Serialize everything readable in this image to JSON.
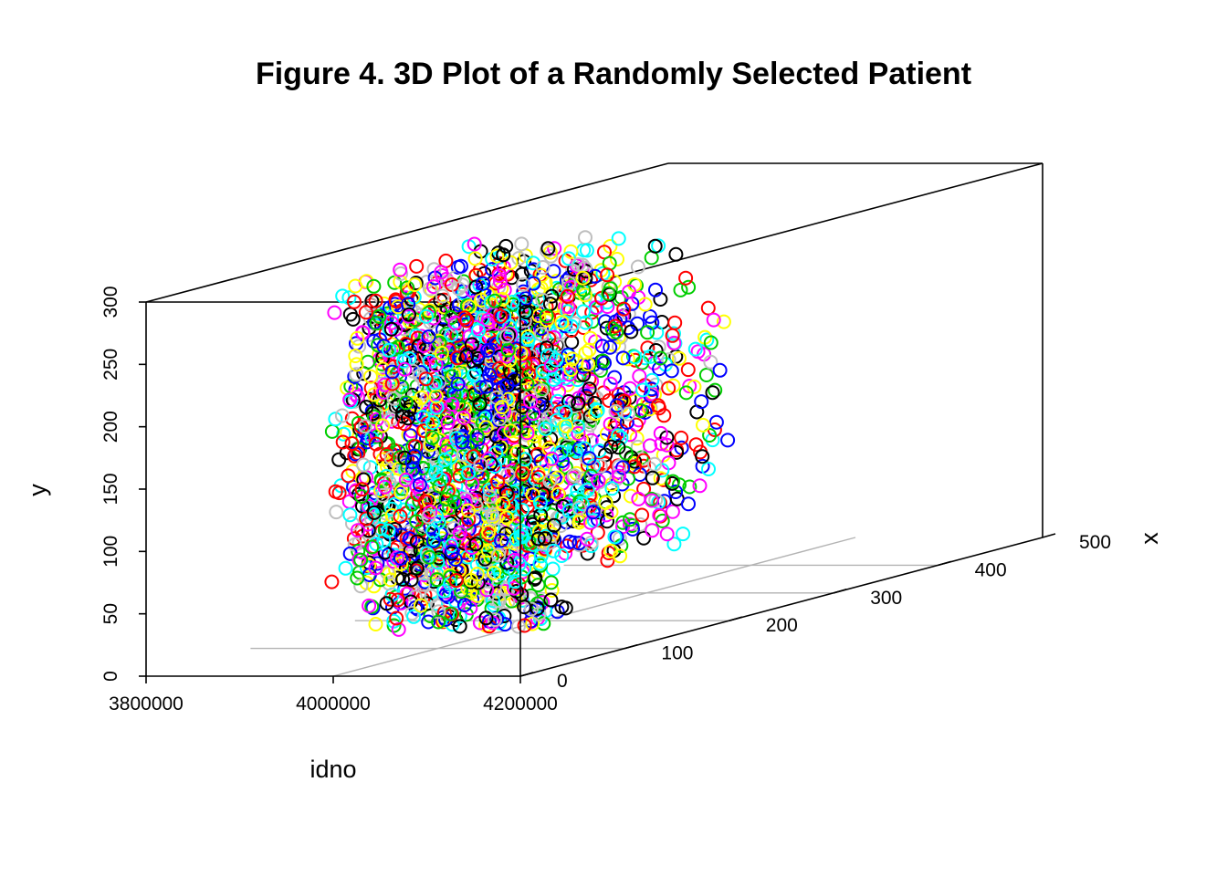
{
  "chart_data": {
    "type": "scatter",
    "projection": "3d",
    "title": "Figure 4. 3D Plot of a Randomly Selected Patient",
    "xlabel": "idno",
    "ylabel": "x",
    "zlabel": "y",
    "xlim": [
      3800000,
      4200000
    ],
    "ylim": [
      0,
      500
    ],
    "zlim": [
      0,
      300
    ],
    "x_ticks": [
      "3800000",
      "4000000",
      "4200000"
    ],
    "y_ticks": [
      "0",
      "100",
      "200",
      "300",
      "400",
      "500"
    ],
    "z_ticks": [
      "0",
      "50",
      "100",
      "150",
      "200",
      "250",
      "300"
    ],
    "marker": "open-circle",
    "point_colors": [
      "#000000",
      "#ff0000",
      "#00cd00",
      "#0000ff",
      "#00ffff",
      "#ff00ff",
      "#ffff00",
      "#bebebe"
    ],
    "clusters": [
      {
        "idno": 4200000,
        "x_range": [
          0,
          40
        ],
        "y_range": [
          35,
          300
        ],
        "shape": "crescent-left"
      },
      {
        "idno": 4200000,
        "x_range": [
          60,
          240
        ],
        "y_range": [
          55,
          300
        ],
        "shape": "crescent-right"
      }
    ],
    "grid": true
  }
}
